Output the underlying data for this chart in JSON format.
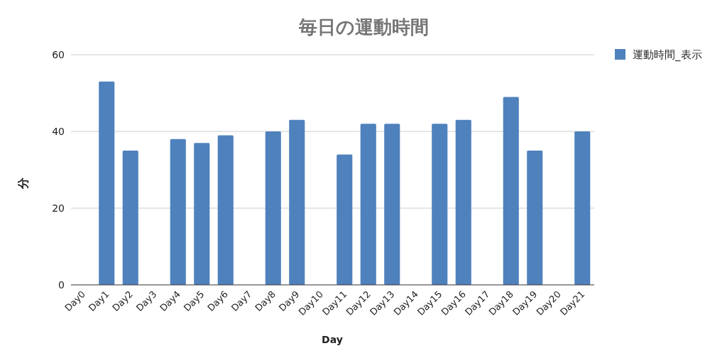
{
  "chart_data": {
    "type": "bar",
    "title": "毎日の運動時間",
    "xlabel": "Day",
    "ylabel": "分",
    "categories": [
      "Day0",
      "Day1",
      "Day2",
      "Day3",
      "Day4",
      "Day5",
      "Day6",
      "Day7",
      "Day8",
      "Day9",
      "Day10",
      "Day11",
      "Day12",
      "Day13",
      "Day14",
      "Day15",
      "Day16",
      "Day17",
      "Day18",
      "Day19",
      "Day20",
      "Day21"
    ],
    "series": [
      {
        "name": "運動時間_表示",
        "color": "#4f81bd",
        "values": [
          null,
          53,
          35,
          null,
          38,
          37,
          39,
          null,
          40,
          43,
          null,
          34,
          42,
          42,
          null,
          42,
          43,
          null,
          49,
          35,
          null,
          40
        ]
      }
    ],
    "ylim": [
      0,
      60
    ],
    "yticks": [
      0,
      20,
      40,
      60
    ],
    "grid": "y",
    "legend": "top right"
  }
}
